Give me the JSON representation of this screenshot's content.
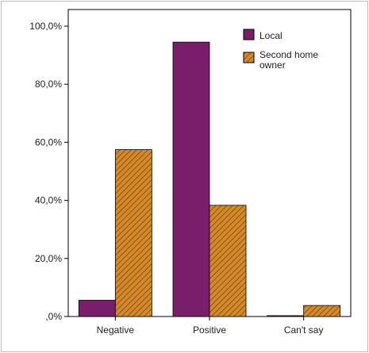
{
  "chart_data": {
    "type": "bar",
    "categories": [
      "Negative",
      "Positive",
      "Can't say"
    ],
    "series": [
      {
        "name": "Local",
        "values": [
          5.6,
          94.5,
          0.3
        ],
        "color": "#7a1e6b"
      },
      {
        "name_lines": [
          "Second home",
          "owner"
        ],
        "values": [
          57.5,
          38.3,
          3.8
        ],
        "color": "#d07f1e",
        "pattern": "diagonal-hatch"
      }
    ],
    "ylim": [
      0,
      100
    ],
    "yticks": [
      0,
      20,
      40,
      60,
      80,
      100
    ],
    "ytick_labels": [
      ",0%",
      "20,0%",
      "40,0%",
      "60,0%",
      "80,0%",
      "100,0%"
    ],
    "legend_position": "top-right",
    "grid": false
  }
}
